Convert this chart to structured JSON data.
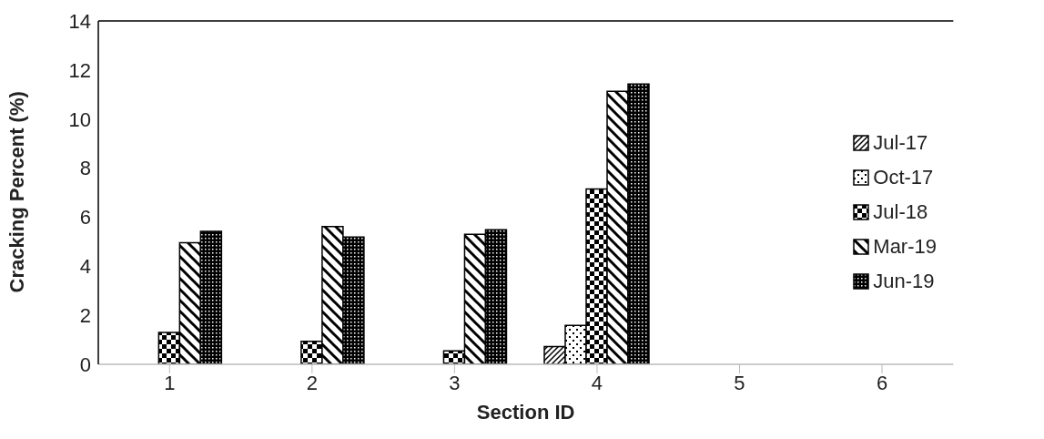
{
  "chart_data": {
    "type": "bar",
    "xlabel": "Section ID",
    "ylabel": "Cracking Percent (%)",
    "categories": [
      "1",
      "2",
      "3",
      "4",
      "5",
      "6"
    ],
    "series": [
      {
        "name": "Jul-17",
        "color": "#000000",
        "values": [
          null,
          null,
          null,
          0.72,
          null,
          null
        ]
      },
      {
        "name": "Oct-17",
        "color": "#000000",
        "values": [
          null,
          null,
          null,
          1.59,
          null,
          null
        ]
      },
      {
        "name": "Jul-18",
        "color": "#000000",
        "values": [
          1.3,
          0.94,
          0.55,
          7.15,
          null,
          null
        ]
      },
      {
        "name": "Mar-19",
        "color": "#000000",
        "values": [
          4.96,
          5.62,
          5.3,
          11.13,
          null,
          null
        ]
      },
      {
        "name": "Jun-19",
        "color": "#000000",
        "values": [
          5.42,
          5.19,
          5.49,
          11.43,
          null,
          null
        ]
      }
    ],
    "ylim": [
      0,
      14
    ],
    "yticks": [
      0,
      2,
      4,
      6,
      8,
      10,
      12,
      14
    ],
    "grid": false,
    "legend": "right"
  }
}
